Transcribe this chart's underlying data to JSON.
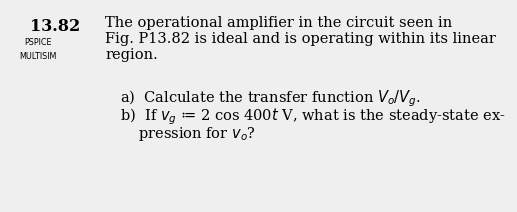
{
  "bg_color": "#efefef",
  "problem_number": "13.82",
  "label1": "PSPICE",
  "label2": "MULTISIM",
  "line1": "The operational amplifier in the circuit seen in",
  "line2": "Fig. P13.82 is ideal and is operating within its linear",
  "line3": "region.",
  "part_a": "a)  Calculate the transfer function $V_o/V_g$.",
  "part_b1": "b)  If $v_g$ ≔ 2 cos 400$t$ V, what is the steady-state ex-",
  "part_b2": "pression for $v_o$?",
  "fontsize_main": 10.5,
  "fontsize_num": 11.5,
  "fontsize_label": 5.8
}
